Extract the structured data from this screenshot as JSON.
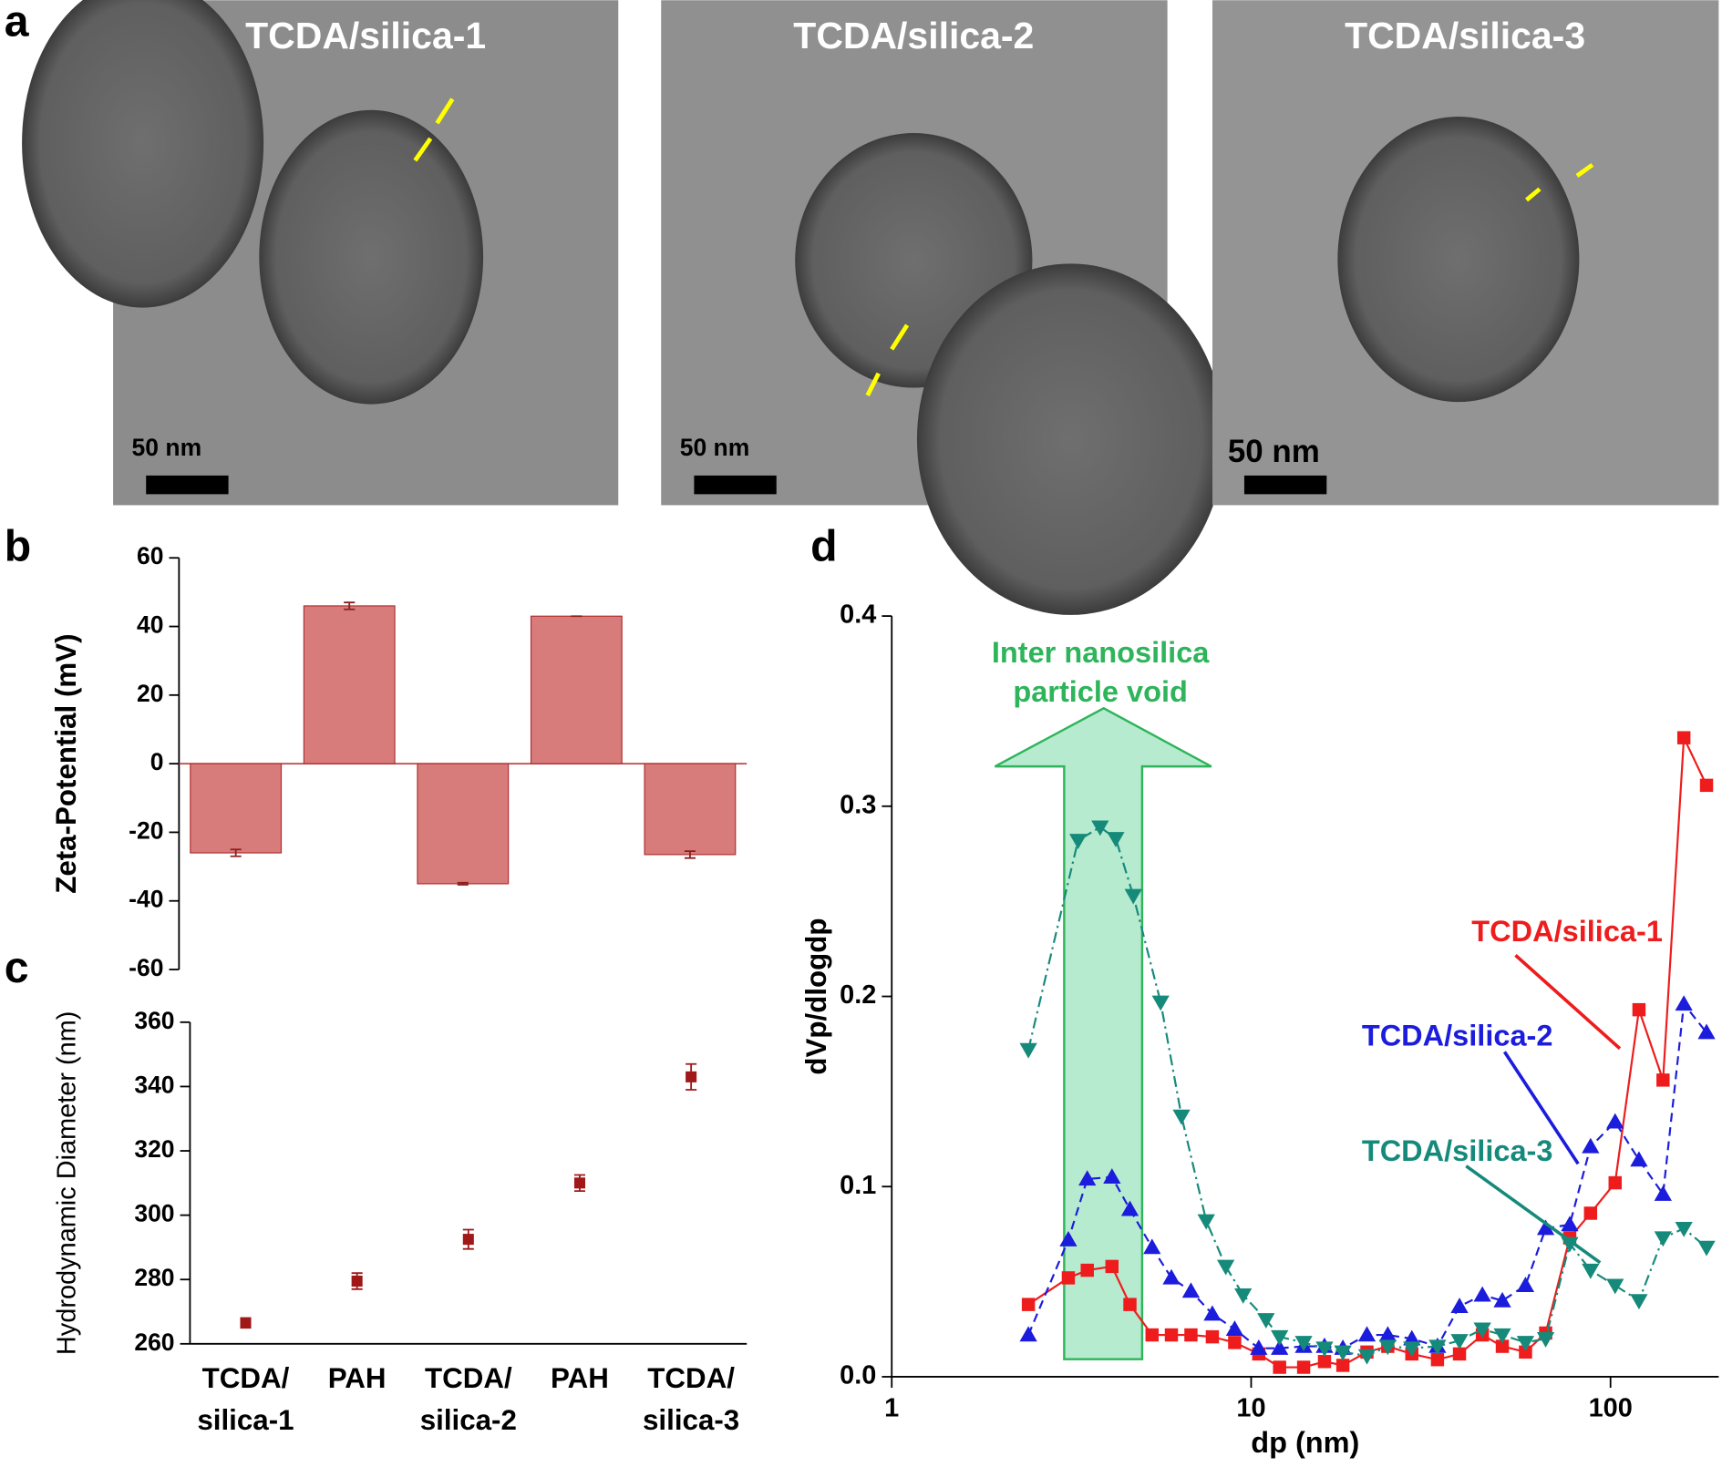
{
  "panel_labels": [
    "a",
    "b",
    "c",
    "d"
  ],
  "micrographs": [
    {
      "title": "TCDA/silica-1",
      "scale_bar": "50 nm"
    },
    {
      "title": "TCDA/silica-2",
      "scale_bar": "50 nm"
    },
    {
      "title": "TCDA/silica-3",
      "scale_bar": "50 nm"
    }
  ],
  "chart_data": [
    {
      "type": "bar",
      "y_label": "Zeta-Potential (mV)",
      "values": [
        -26,
        46,
        -35,
        43,
        -26.5
      ],
      "errors": [
        1,
        1,
        0.3,
        0,
        1
      ],
      "color": "#d77b7b",
      "ylim": [
        -60,
        60
      ],
      "yticks": [
        -60,
        -40,
        -20,
        0,
        20,
        40,
        60
      ]
    },
    {
      "type": "scatter",
      "y_label": "Hydrodynamic Diameter (nm)",
      "categories": [
        "TCDA/\nsilica-1",
        "PAH",
        "TCDA/\nsilica-2",
        "PAH",
        "TCDA/\nsilica-3"
      ],
      "values": [
        266.5,
        279.5,
        292.5,
        310,
        343
      ],
      "errors": [
        1.5,
        2.5,
        3,
        2.5,
        4
      ],
      "color": "#a01818",
      "ylim": [
        260,
        360
      ],
      "yticks": [
        260,
        280,
        300,
        320,
        340,
        360
      ]
    },
    {
      "type": "line",
      "x_label": "dp (nm)",
      "y_label": "dVp/dlogdp",
      "log_x": true,
      "annotation": [
        "Inter nanosilica",
        "particle void"
      ],
      "xlim": [
        1,
        200
      ],
      "xticks": [
        1,
        10,
        100
      ],
      "ylim": [
        0,
        0.4
      ],
      "yticks": [
        {
          "value": 0,
          "label": "0.0"
        },
        0.1,
        0.2,
        0.3,
        0.4
      ],
      "series": [
        {
          "name": "TCDA/silica-1",
          "color": "#ee1c1c",
          "marker": "square",
          "dash": "solid",
          "x": [
            2.4,
            3.1,
            3.5,
            4.1,
            4.6,
            5.3,
            6,
            6.8,
            7.8,
            9,
            10.5,
            12,
            14,
            16,
            18,
            21,
            24,
            28,
            33,
            38,
            44,
            50,
            58,
            66,
            77,
            88,
            103,
            120,
            140,
            160,
            185
          ],
          "values": [
            0.038,
            0.052,
            0.056,
            0.058,
            0.038,
            0.022,
            0.022,
            0.022,
            0.021,
            0.018,
            0.012,
            0.005,
            0.005,
            0.008,
            0.006,
            0.013,
            0.016,
            0.012,
            0.009,
            0.012,
            0.022,
            0.016,
            0.013,
            0.023,
            0.073,
            0.086,
            0.102,
            0.193,
            0.156,
            0.336,
            0.311
          ]
        },
        {
          "name": "TCDA/silica-2",
          "color": "#1c1cdc",
          "marker": "triangle-up",
          "dash": "dashed",
          "x": [
            2.4,
            3.1,
            3.5,
            4.1,
            4.6,
            5.3,
            6,
            6.8,
            7.8,
            9,
            10.5,
            12,
            14,
            16,
            18,
            21,
            24,
            28,
            33,
            38,
            44,
            50,
            58,
            66,
            77,
            88,
            103,
            120,
            140,
            160,
            185
          ],
          "values": [
            0.022,
            0.072,
            0.104,
            0.105,
            0.088,
            0.068,
            0.052,
            0.045,
            0.033,
            0.025,
            0.015,
            0.015,
            0.016,
            0.016,
            0.015,
            0.022,
            0.022,
            0.02,
            0.016,
            0.037,
            0.043,
            0.04,
            0.048,
            0.078,
            0.08,
            0.121,
            0.134,
            0.114,
            0.096,
            0.196,
            0.181
          ]
        },
        {
          "name": "TCDA/silica-3",
          "color": "#168a7a",
          "marker": "triangle-down",
          "dash": "dashdot",
          "x": [
            2.4,
            3.3,
            3.8,
            4.2,
            4.7,
            5.6,
            6.4,
            7.5,
            8.5,
            9.5,
            11,
            12,
            14,
            16,
            18,
            21,
            24,
            28,
            33,
            38,
            44,
            50,
            58,
            66,
            77,
            88,
            103,
            120,
            140,
            160,
            185
          ],
          "values": [
            0.172,
            0.282,
            0.289,
            0.283,
            0.253,
            0.197,
            0.137,
            0.082,
            0.058,
            0.043,
            0.03,
            0.021,
            0.018,
            0.015,
            0.013,
            0.011,
            0.016,
            0.015,
            0.016,
            0.019,
            0.025,
            0.022,
            0.018,
            0.02,
            0.07,
            0.056,
            0.048,
            0.04,
            0.073,
            0.078,
            0.068
          ]
        }
      ]
    }
  ]
}
